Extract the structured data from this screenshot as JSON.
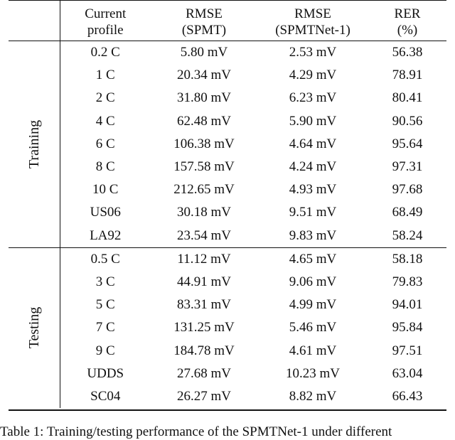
{
  "headers": {
    "col1": [
      "Current",
      "profile"
    ],
    "col2": [
      "RMSE",
      "(SPMT)"
    ],
    "col3": [
      "RMSE",
      "(SPMTNet-1)"
    ],
    "col4": [
      "RER",
      "(%)"
    ]
  },
  "groups": [
    {
      "label": "Training",
      "rows": [
        [
          "0.2 C",
          "5.80 mV",
          "2.53 mV",
          "56.38"
        ],
        [
          "1 C",
          "20.34 mV",
          "4.29 mV",
          "78.91"
        ],
        [
          "2 C",
          "31.80 mV",
          "6.23 mV",
          "80.41"
        ],
        [
          "4 C",
          "62.48 mV",
          "5.90 mV",
          "90.56"
        ],
        [
          "6 C",
          "106.38 mV",
          "4.64 mV",
          "95.64"
        ],
        [
          "8 C",
          "157.58 mV",
          "4.24 mV",
          "97.31"
        ],
        [
          "10 C",
          "212.65 mV",
          "4.93 mV",
          "97.68"
        ],
        [
          "US06",
          "30.18 mV",
          "9.51 mV",
          "68.49"
        ],
        [
          "LA92",
          "23.54 mV",
          "9.83 mV",
          "58.24"
        ]
      ]
    },
    {
      "label": "Testing",
      "rows": [
        [
          "0.5 C",
          "11.12 mV",
          "4.65 mV",
          "58.18"
        ],
        [
          "3 C",
          "44.91 mV",
          "9.06 mV",
          "79.83"
        ],
        [
          "5 C",
          "83.31 mV",
          "4.99 mV",
          "94.01"
        ],
        [
          "7 C",
          "131.25 mV",
          "5.46 mV",
          "95.84"
        ],
        [
          "9 C",
          "184.78 mV",
          "4.61 mV",
          "97.51"
        ],
        [
          "UDDS",
          "27.68 mV",
          "10.23 mV",
          "63.04"
        ],
        [
          "SC04",
          "26.27 mV",
          "8.82 mV",
          "66.43"
        ]
      ]
    }
  ],
  "caption": "Table 1: Training/testing performance of the SPMTNet-1 under different"
}
